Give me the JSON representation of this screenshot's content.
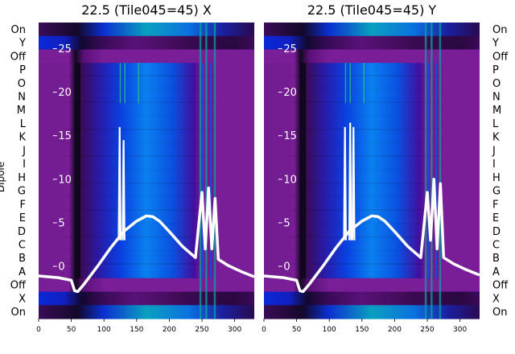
{
  "chart_data": [
    {
      "type": "heatmap",
      "title": "22.5 (Tile045=45) X",
      "ylabel": "Dipole",
      "xlim": [
        0,
        330
      ],
      "xticks": [
        0,
        50,
        100,
        150,
        200,
        250,
        300
      ],
      "row_labels": [
        "On",
        "Y",
        "Off",
        "P",
        "O",
        "N",
        "M",
        "L",
        "K",
        "J",
        "I",
        "H",
        "G",
        "F",
        "E",
        "D",
        "C",
        "B",
        "A",
        "Off",
        "X",
        "On"
      ],
      "overlay_yticks": [
        0,
        5,
        10,
        15,
        20,
        25
      ],
      "overlay_ylim": [
        -6,
        28
      ],
      "overlay_line": {
        "x": [
          0,
          30,
          50,
          55,
          60,
          70,
          90,
          110,
          130,
          150,
          165,
          175,
          185,
          200,
          220,
          240,
          250,
          255,
          260,
          265,
          270,
          275,
          290,
          310,
          330
        ],
        "y": [
          -1.1,
          -1.3,
          -1.6,
          -2.8,
          -2.9,
          -2.0,
          0.0,
          2.1,
          4.0,
          5.2,
          5.8,
          5.7,
          5.2,
          4.0,
          2.3,
          1.0,
          8.5,
          2.0,
          9.0,
          2.0,
          7.8,
          0.8,
          0.1,
          -0.6,
          -1.2
        ]
      },
      "overlay_spikes": [
        {
          "x": 124,
          "y": 16.0
        },
        {
          "x": 130,
          "y": 14.5
        }
      ]
    },
    {
      "type": "heatmap",
      "title": "22.5 (Tile045=45) Y",
      "xlim": [
        0,
        330
      ],
      "xticks": [
        0,
        50,
        100,
        150,
        200,
        250,
        300
      ],
      "row_labels": [
        "On",
        "Y",
        "Off",
        "P",
        "O",
        "N",
        "M",
        "L",
        "K",
        "J",
        "I",
        "H",
        "G",
        "F",
        "E",
        "D",
        "C",
        "B",
        "A",
        "Off",
        "X",
        "On"
      ],
      "overlay_yticks": [
        0,
        5,
        10,
        15,
        20,
        25
      ],
      "overlay_ylim": [
        -6,
        28
      ],
      "overlay_line": {
        "x": [
          0,
          30,
          50,
          55,
          60,
          70,
          90,
          110,
          130,
          150,
          165,
          175,
          185,
          200,
          220,
          240,
          250,
          255,
          260,
          265,
          270,
          275,
          290,
          310,
          330
        ],
        "y": [
          -1.1,
          -1.3,
          -1.6,
          -2.8,
          -2.9,
          -2.0,
          0.0,
          2.1,
          4.0,
          5.2,
          5.8,
          5.7,
          5.2,
          4.0,
          2.3,
          1.0,
          8.5,
          3.0,
          10.0,
          2.0,
          9.5,
          1.0,
          0.3,
          -0.4,
          -1.0
        ]
      },
      "overlay_spikes": [
        {
          "x": 124,
          "y": 16.0
        },
        {
          "x": 132,
          "y": 16.5
        },
        {
          "x": 137,
          "y": 16.0
        }
      ]
    }
  ]
}
